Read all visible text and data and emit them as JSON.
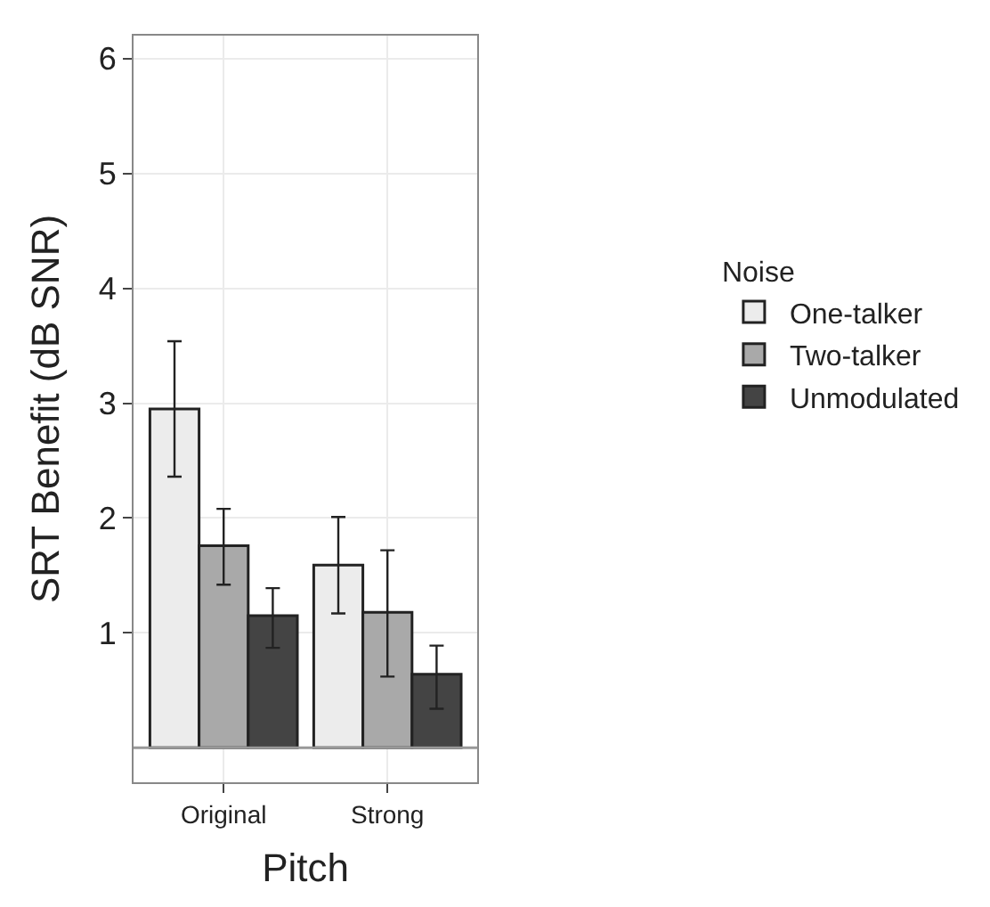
{
  "chart_data": {
    "type": "bar",
    "xlabel": "Pitch",
    "ylabel": "SRT Benefit (dB SNR)",
    "legend_title": "Noise",
    "categories": [
      "Original",
      "Strong"
    ],
    "series": [
      {
        "name": "One-talker",
        "color": "#ececec",
        "values": [
          2.95,
          1.59
        ],
        "errors": [
          [
            2.36,
            3.54
          ],
          [
            1.17,
            2.01
          ]
        ]
      },
      {
        "name": "Two-talker",
        "color": "#a9a9a9",
        "values": [
          1.76,
          1.18
        ],
        "errors": [
          [
            1.42,
            2.08
          ],
          [
            0.62,
            1.72
          ]
        ]
      },
      {
        "name": "Unmodulated",
        "color": "#444444",
        "values": [
          1.15,
          0.64
        ],
        "errors": [
          [
            0.87,
            1.39
          ],
          [
            0.34,
            0.89
          ]
        ]
      }
    ],
    "ylim": [
      -0.3,
      6.2
    ],
    "yticks": [
      1,
      2,
      3,
      4,
      5,
      6
    ],
    "ref_lines": [
      {
        "axis": "y",
        "value": 0,
        "color": "#999999"
      }
    ],
    "grid": true,
    "legend": "right"
  }
}
